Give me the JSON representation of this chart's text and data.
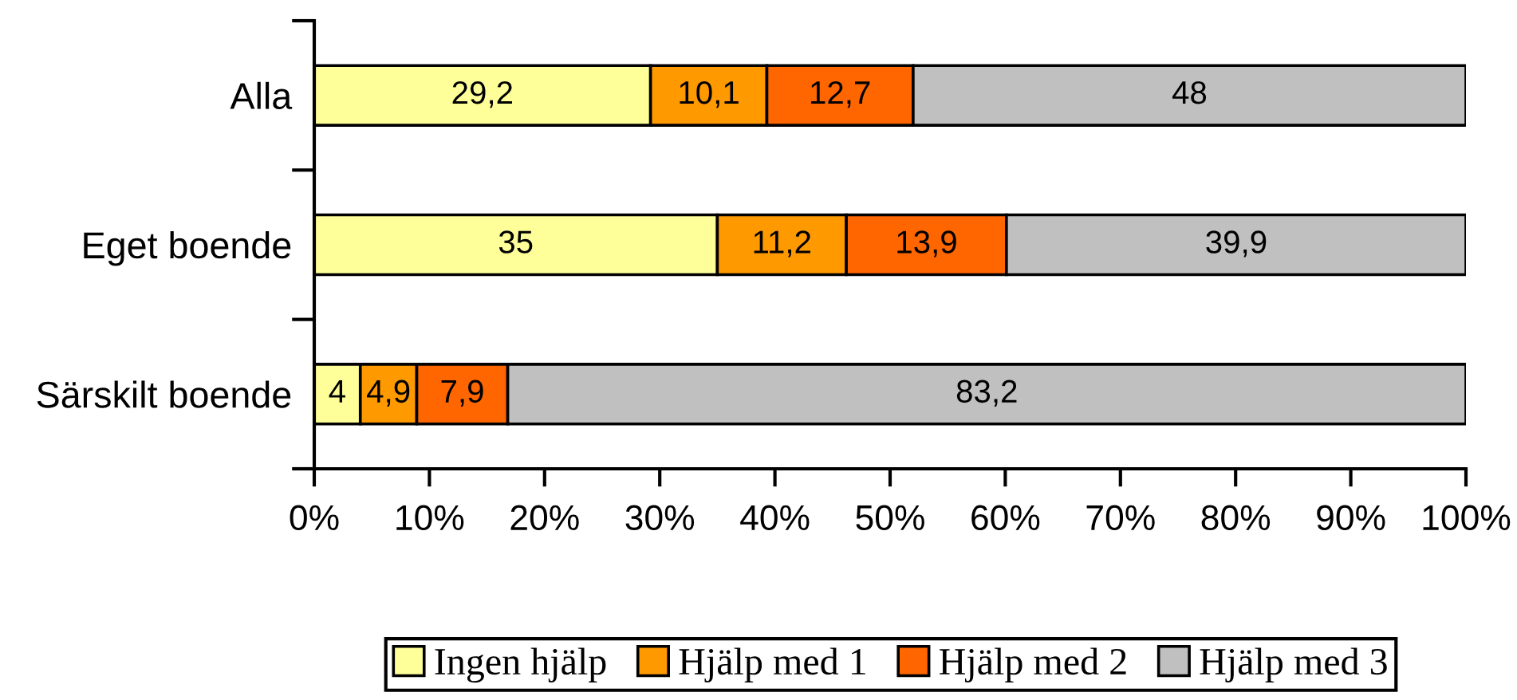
{
  "chart_data": {
    "type": "bar",
    "orientation": "horizontal",
    "stacked": true,
    "categories": [
      "Alla",
      "Eget boende",
      "Särskilt boende"
    ],
    "series": [
      {
        "name": "Ingen hjälp",
        "color": "#ffff99",
        "values": [
          29.2,
          35,
          4
        ],
        "value_labels": [
          "29,2",
          "35",
          "4"
        ]
      },
      {
        "name": "Hjälp med 1",
        "color": "#ff9900",
        "values": [
          10.1,
          11.2,
          4.9
        ],
        "value_labels": [
          "10,1",
          "11,2",
          "4,9"
        ]
      },
      {
        "name": "Hjälp med 2",
        "color": "#ff6600",
        "values": [
          12.7,
          13.9,
          7.9
        ],
        "value_labels": [
          "12,7",
          "13,9",
          "7,9"
        ]
      },
      {
        "name": "Hjälp med 3",
        "color": "#c0c0c0",
        "values": [
          48,
          39.9,
          83.2
        ],
        "value_labels": [
          "48",
          "39,9",
          "83,2"
        ]
      }
    ],
    "xlim": [
      0,
      100
    ],
    "xticks": [
      {
        "value": 0,
        "label": "0%"
      },
      {
        "value": 10,
        "label": "10%"
      },
      {
        "value": 20,
        "label": "20%"
      },
      {
        "value": 30,
        "label": "30%"
      },
      {
        "value": 40,
        "label": "40%"
      },
      {
        "value": 50,
        "label": "50%"
      },
      {
        "value": 60,
        "label": "60%"
      },
      {
        "value": 70,
        "label": "70%"
      },
      {
        "value": 80,
        "label": "80%"
      },
      {
        "value": 90,
        "label": "90%"
      },
      {
        "value": 100,
        "label": "100%"
      }
    ],
    "legend": "bottom",
    "grid": false
  }
}
